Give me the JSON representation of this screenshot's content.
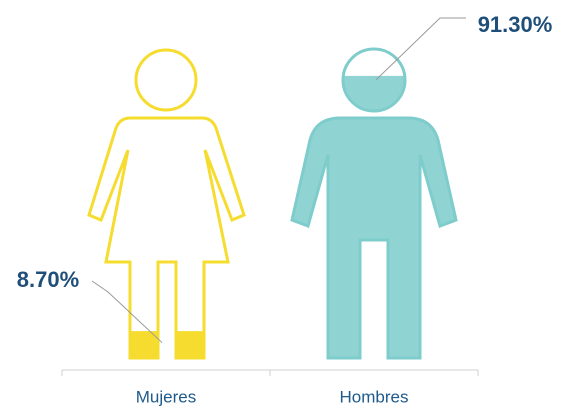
{
  "chart_data": {
    "type": "pictograph",
    "categories": [
      "Mujeres",
      "Hombres"
    ],
    "series": [
      {
        "values": [
          8.7,
          91.3
        ],
        "value_labels": [
          "8.70%",
          "91.30%"
        ],
        "colors": [
          "#f5dc2f",
          "#8fd3d3"
        ]
      }
    ],
    "ylim": [
      0,
      100
    ]
  }
}
